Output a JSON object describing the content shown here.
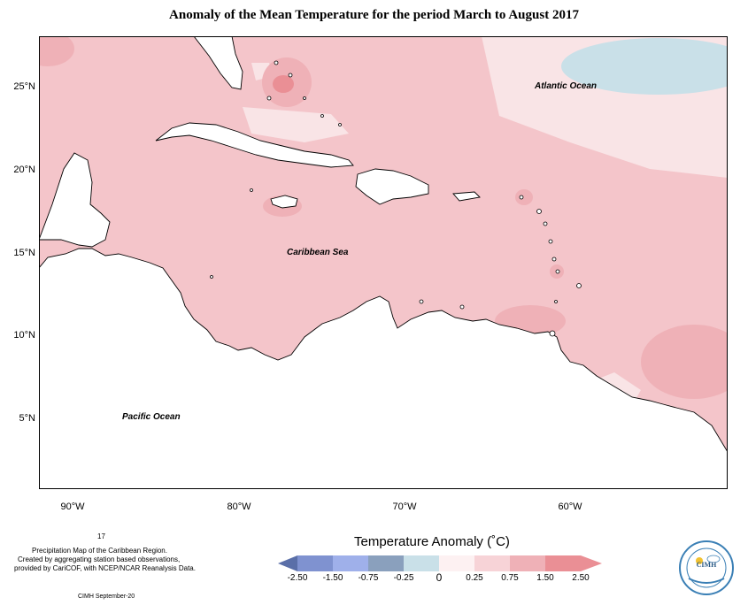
{
  "title": "Anomaly of the Mean Temperature for the period March to August 2017",
  "map": {
    "labels": {
      "atlantic": "Atlantic Ocean",
      "caribbean": "Caribbean Sea",
      "pacific": "Pacific Ocean"
    },
    "lat_ticks": [
      "25°N",
      "20°N",
      "15°N",
      "10°N",
      "5°N"
    ],
    "lon_ticks": [
      "90°W",
      "80°W",
      "70°W",
      "60°W"
    ],
    "colors": {
      "land": "#ffffff",
      "coast": "#000000",
      "anomaly_0_25": "#f9e4e6",
      "anomaly_0_75": "#f4c5ca",
      "anomaly_1_50": "#e9a3aa",
      "anomaly_neg": "#c9e0e8"
    }
  },
  "notes": {
    "page_number": "17",
    "line1": "Precipitation Map of the Caribbean Region.",
    "line2": "Created by aggregating station based observations,",
    "line3": "provided by CariCOF, with NCEP/NCAR Reanalysis Data.",
    "credit": "CIMH September-20"
  },
  "legend": {
    "title": "Temperature Anomaly (˚C)",
    "labels": [
      "-2.50",
      "-1.50",
      "-0.75",
      "-0.25",
      "0",
      "0.25",
      "0.75",
      "1.50",
      "2.50"
    ],
    "colors": [
      "#5a6fa8",
      "#7f92d0",
      "#9fb0ea",
      "#8aa0bd",
      "#c9e0e8",
      "#fdf1f2",
      "#f7d3d7",
      "#efb1b7",
      "#ea8f95"
    ]
  },
  "logo": {
    "text": "CIMH"
  }
}
